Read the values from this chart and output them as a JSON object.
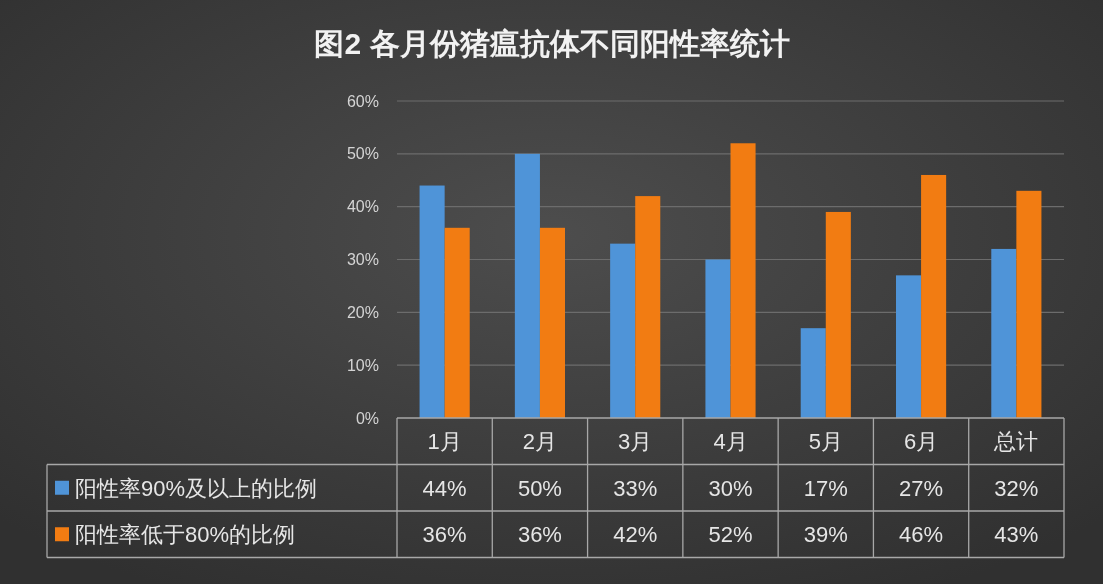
{
  "chart_data": {
    "type": "bar",
    "title": "图2 各月份猪瘟抗体不同阳性率统计",
    "categories": [
      "1月",
      "2月",
      "3月",
      "4月",
      "5月",
      "6月",
      "总计"
    ],
    "series": [
      {
        "name": "阳性率90%及以上的比例",
        "color": "#4f94d8",
        "values": [
          44,
          50,
          33,
          30,
          17,
          27,
          32
        ],
        "value_labels": [
          "44%",
          "50%",
          "33%",
          "30%",
          "17%",
          "27%",
          "32%"
        ]
      },
      {
        "name": "阳性率低于80%的比例",
        "color": "#f27c12",
        "values": [
          36,
          36,
          42,
          52,
          39,
          46,
          43
        ],
        "value_labels": [
          "36%",
          "36%",
          "42%",
          "52%",
          "39%",
          "46%",
          "43%"
        ]
      }
    ],
    "ylim": [
      0,
      60
    ],
    "yticks": [
      {
        "value": 0,
        "label": "0%"
      },
      {
        "value": 10,
        "label": "10%"
      },
      {
        "value": 20,
        "label": "20%"
      },
      {
        "value": 30,
        "label": "30%"
      },
      {
        "value": 40,
        "label": "40%"
      },
      {
        "value": 50,
        "label": "50%"
      },
      {
        "value": 60,
        "label": "60%"
      }
    ],
    "grid": "y",
    "legend": "bottom"
  }
}
